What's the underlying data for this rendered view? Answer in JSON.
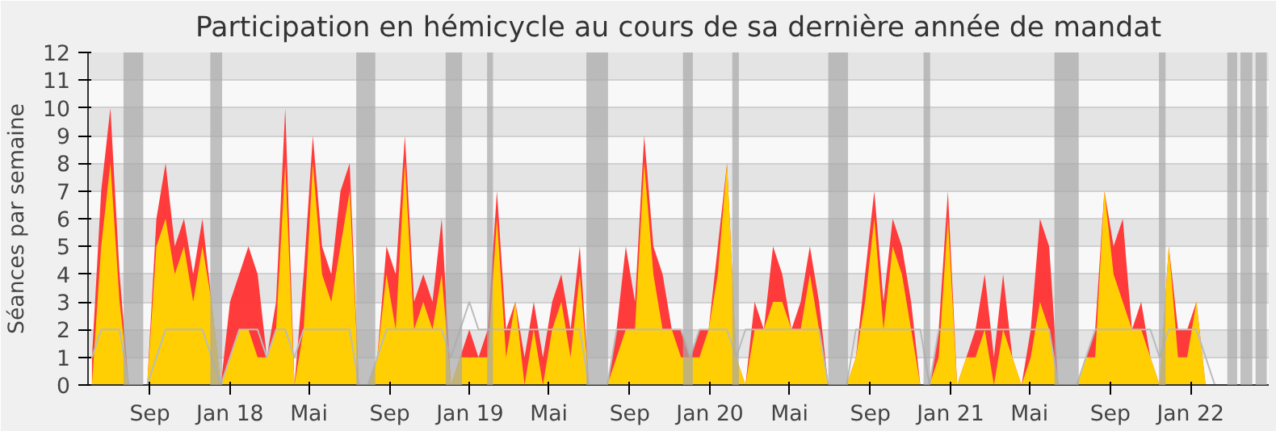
{
  "chart_data": {
    "type": "area",
    "title": "Participation en hémicycle au cours de sa dernière année de mandat",
    "ylabel": "Séances par semaine",
    "x": [
      "2017-06-05",
      "2017-06-19",
      "2017-07-03",
      "2017-07-17",
      "2017-07-31",
      "2017-08-14",
      "2017-08-28",
      "2017-09-11",
      "2017-09-25",
      "2017-10-09",
      "2017-10-23",
      "2017-11-06",
      "2017-11-20",
      "2017-12-04",
      "2017-12-18",
      "2018-01-01",
      "2018-01-15",
      "2018-01-29",
      "2018-02-12",
      "2018-02-26",
      "2018-03-12",
      "2018-03-26",
      "2018-04-09",
      "2018-04-23",
      "2018-05-07",
      "2018-05-21",
      "2018-06-04",
      "2018-06-18",
      "2018-07-02",
      "2018-07-16",
      "2018-07-30",
      "2018-08-13",
      "2018-08-27",
      "2018-09-10",
      "2018-09-24",
      "2018-10-08",
      "2018-10-22",
      "2018-11-05",
      "2018-11-19",
      "2018-12-03",
      "2018-12-17",
      "2018-12-31",
      "2019-01-14",
      "2019-01-28",
      "2019-02-11",
      "2019-02-25",
      "2019-03-11",
      "2019-03-25",
      "2019-04-08",
      "2019-04-22",
      "2019-05-06",
      "2019-05-20",
      "2019-06-03",
      "2019-06-17",
      "2019-07-01",
      "2019-07-15",
      "2019-07-29",
      "2019-08-12",
      "2019-08-26",
      "2019-09-09",
      "2019-09-23",
      "2019-10-07",
      "2019-10-21",
      "2019-11-04",
      "2019-11-18",
      "2019-12-02",
      "2019-12-16",
      "2019-12-30",
      "2020-01-13",
      "2020-01-27",
      "2020-02-10",
      "2020-02-24",
      "2020-03-09",
      "2020-03-23",
      "2020-04-06",
      "2020-04-20",
      "2020-05-04",
      "2020-05-18",
      "2020-06-01",
      "2020-06-15",
      "2020-06-29",
      "2020-07-13",
      "2020-07-27",
      "2020-08-10",
      "2020-08-24",
      "2020-09-07",
      "2020-09-21",
      "2020-10-05",
      "2020-10-19",
      "2020-11-02",
      "2020-11-16",
      "2020-11-30",
      "2020-12-14",
      "2020-12-28",
      "2021-01-11",
      "2021-01-25",
      "2021-02-08",
      "2021-02-22",
      "2021-03-08",
      "2021-03-22",
      "2021-04-05",
      "2021-04-19",
      "2021-05-03",
      "2021-05-17",
      "2021-05-31",
      "2021-06-14",
      "2021-06-28",
      "2021-07-12",
      "2021-07-26",
      "2021-08-09",
      "2021-08-23",
      "2021-09-06",
      "2021-09-20",
      "2021-10-04",
      "2021-10-18",
      "2021-11-01",
      "2021-11-15",
      "2021-11-29",
      "2021-12-13",
      "2021-12-27",
      "2022-01-10",
      "2022-01-24",
      "2022-02-07",
      "2022-02-21",
      "2022-03-07",
      "2022-03-21",
      "2022-04-04",
      "2022-04-18"
    ],
    "series": [
      {
        "type": "line",
        "color": "#bbbbbb",
        "values": [
          1,
          2,
          2,
          2,
          0,
          0,
          0,
          1,
          2,
          2,
          2,
          2,
          2,
          1,
          0,
          1,
          2,
          2,
          2,
          1,
          2,
          2,
          1,
          2,
          2,
          2,
          2,
          2,
          2,
          0,
          0,
          1,
          2,
          2,
          2,
          2,
          2,
          2,
          2,
          1,
          2,
          3,
          2,
          2,
          2,
          2,
          2,
          2,
          2,
          2,
          2,
          2,
          2,
          2,
          0,
          0,
          0,
          2,
          2,
          2,
          2,
          2,
          2,
          2,
          2,
          1,
          2,
          2,
          2,
          2,
          1,
          2,
          2,
          2,
          2,
          2,
          2,
          2,
          2,
          2,
          0,
          0,
          0,
          2,
          2,
          2,
          2,
          2,
          2,
          2,
          2,
          0,
          2,
          2,
          2,
          2,
          2,
          2,
          2,
          2,
          2,
          2,
          2,
          2,
          2,
          0,
          0,
          0,
          1,
          2,
          2,
          2,
          2,
          2,
          2,
          2,
          1,
          2,
          2,
          2,
          2,
          1,
          0,
          0,
          0,
          0,
          0,
          0
        ]
      },
      {
        "color": "#ff3030",
        "values": [
          1,
          7,
          10,
          4,
          0,
          0,
          0,
          6,
          8,
          5,
          6,
          4,
          6,
          3,
          0,
          3,
          4,
          5,
          4,
          1,
          3,
          10,
          0,
          4,
          9,
          5,
          4,
          7,
          8,
          0,
          0,
          1,
          5,
          4,
          9,
          3,
          4,
          3,
          6,
          0,
          1,
          2,
          1,
          2,
          7,
          2,
          3,
          1,
          3,
          1,
          3,
          4,
          2,
          5,
          0,
          0,
          0,
          2,
          5,
          3,
          9,
          5,
          4,
          2,
          2,
          1,
          2,
          2,
          5,
          8,
          1,
          0,
          3,
          2,
          5,
          4,
          2,
          3,
          5,
          3,
          0,
          0,
          0,
          1,
          4,
          7,
          3,
          6,
          5,
          3,
          0,
          0,
          2,
          7,
          0,
          1,
          2,
          4,
          1,
          4,
          1,
          0,
          2,
          6,
          5,
          0,
          0,
          0,
          1,
          2,
          7,
          5,
          6,
          2,
          3,
          1,
          0,
          5,
          2,
          2,
          3,
          0,
          0,
          0,
          0,
          0,
          0,
          0
        ]
      },
      {
        "color": "#ffd700",
        "values": [
          0,
          5,
          8,
          3,
          0,
          0,
          0,
          5,
          6,
          4,
          5,
          3,
          5,
          3,
          0,
          1,
          2,
          2,
          1,
          1,
          2,
          8,
          0,
          2,
          8,
          4,
          3,
          5,
          7,
          0,
          0,
          1,
          4,
          2,
          8,
          2,
          3,
          2,
          4,
          0,
          1,
          1,
          1,
          1,
          6,
          1,
          3,
          0,
          2,
          0,
          2,
          3,
          1,
          4,
          0,
          0,
          0,
          1,
          2,
          2,
          8,
          4,
          2,
          2,
          1,
          1,
          1,
          2,
          4,
          8,
          1,
          0,
          2,
          2,
          3,
          3,
          2,
          2,
          4,
          2,
          0,
          0,
          0,
          1,
          3,
          6,
          2,
          5,
          4,
          2,
          0,
          0,
          1,
          6,
          0,
          1,
          1,
          2,
          0,
          2,
          1,
          0,
          1,
          3,
          2,
          0,
          0,
          0,
          1,
          1,
          7,
          4,
          3,
          2,
          2,
          1,
          0,
          5,
          1,
          1,
          3,
          0,
          0,
          0,
          0,
          0,
          0,
          0
        ]
      }
    ],
    "xlim": [
      "2017-05-30",
      "2022-04-30"
    ],
    "xticks": [
      {
        "value": "2017-09-01",
        "label": "Sep"
      },
      {
        "value": "2018-01-01",
        "label": "Jan 18"
      },
      {
        "value": "2018-05-01",
        "label": "Mai"
      },
      {
        "value": "2018-09-01",
        "label": "Sep"
      },
      {
        "value": "2019-01-01",
        "label": "Jan 19"
      },
      {
        "value": "2019-05-01",
        "label": "Mai"
      },
      {
        "value": "2019-09-01",
        "label": "Sep"
      },
      {
        "value": "2020-01-01",
        "label": "Jan 20"
      },
      {
        "value": "2020-05-01",
        "label": "Mai"
      },
      {
        "value": "2020-09-01",
        "label": "Sep"
      },
      {
        "value": "2021-01-01",
        "label": "Jan 21"
      },
      {
        "value": "2021-05-01",
        "label": "Mai"
      },
      {
        "value": "2021-09-01",
        "label": "Sep"
      },
      {
        "value": "2022-01-01",
        "label": "Jan 22"
      }
    ],
    "ylim": [
      0,
      12
    ],
    "yticks": [
      0,
      1,
      2,
      3,
      4,
      5,
      6,
      7,
      8,
      9,
      10,
      11,
      12
    ],
    "grid": "y",
    "bands": [
      {
        "axis": "x",
        "from": "2017-07-23",
        "to": "2017-08-22",
        "color": "#a8a8a8"
      },
      {
        "axis": "x",
        "from": "2017-12-02",
        "to": "2017-12-20",
        "color": "#a8a8a8"
      },
      {
        "axis": "x",
        "from": "2018-07-12",
        "to": "2018-08-10",
        "color": "#a8a8a8"
      },
      {
        "axis": "x",
        "from": "2018-11-25",
        "to": "2018-12-20",
        "color": "#a8a8a8"
      },
      {
        "axis": "x",
        "from": "2019-01-27",
        "to": "2019-02-05",
        "color": "#a8a8a8"
      },
      {
        "axis": "x",
        "from": "2019-06-27",
        "to": "2019-07-30",
        "color": "#a8a8a8"
      },
      {
        "axis": "x",
        "from": "2019-11-21",
        "to": "2019-12-06",
        "color": "#a8a8a8"
      },
      {
        "axis": "x",
        "from": "2020-02-04",
        "to": "2020-02-14",
        "color": "#a8a8a8"
      },
      {
        "axis": "x",
        "from": "2020-06-29",
        "to": "2020-07-29",
        "color": "#a8a8a8"
      },
      {
        "axis": "x",
        "from": "2020-11-21",
        "to": "2020-12-01",
        "color": "#a8a8a8"
      },
      {
        "axis": "x",
        "from": "2021-06-08",
        "to": "2021-07-15",
        "color": "#a8a8a8"
      },
      {
        "axis": "x",
        "from": "2021-11-14",
        "to": "2021-11-24",
        "color": "#a8a8a8"
      },
      {
        "axis": "x",
        "from": "2022-02-26",
        "to": "2022-03-13",
        "color": "#a8a8a8"
      },
      {
        "axis": "x",
        "from": "2022-03-18",
        "to": "2022-04-05",
        "color": "#a8a8a8"
      },
      {
        "axis": "x",
        "from": "2022-04-10",
        "to": "2022-04-27",
        "color": "#a8a8a8"
      }
    ]
  }
}
